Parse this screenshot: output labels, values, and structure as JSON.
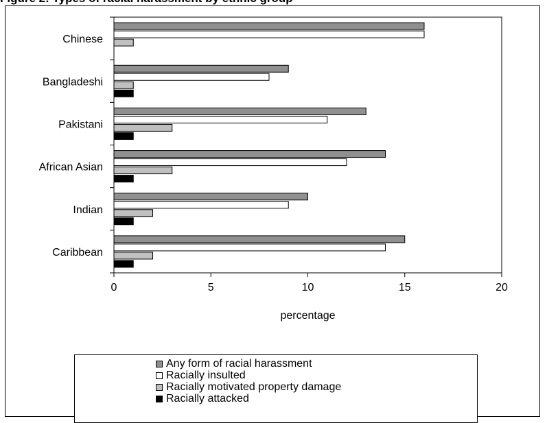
{
  "header": {
    "title": "Figure 2: Types of racial harassment by ethnic group"
  },
  "chart_data": {
    "type": "bar",
    "orientation": "horizontal",
    "categories": [
      "Chinese",
      "Bangladeshi",
      "Pakistani",
      "African Asian",
      "Indian",
      "Caribbean"
    ],
    "series": [
      {
        "name": "Any form of racial harassment",
        "color": "#909090",
        "values": [
          16,
          9,
          13,
          14,
          10,
          15
        ]
      },
      {
        "name": "Racially insulted",
        "color": "#ffffff",
        "values": [
          16,
          8,
          11,
          12,
          9,
          14
        ]
      },
      {
        "name": "Racially motivated property damage",
        "color": "#c0c0c0",
        "values": [
          1,
          1,
          3,
          3,
          2,
          2
        ]
      },
      {
        "name": "Racially attacked",
        "color": "#000000",
        "values": [
          null,
          1,
          1,
          1,
          1,
          1
        ]
      }
    ],
    "xlabel": "percentage",
    "ylabel": "",
    "xlim": [
      0,
      20
    ],
    "xticks": [
      "0",
      "5",
      "10",
      "15",
      "20"
    ],
    "grid": false,
    "legend_position": "bottom"
  }
}
